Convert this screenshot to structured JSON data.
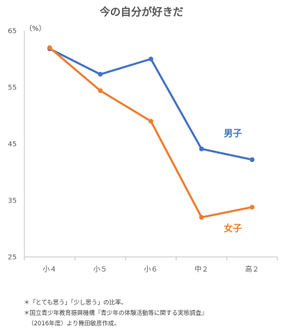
{
  "chart_data": {
    "type": "line",
    "title": "今の自分が好きだ",
    "ylabel": "（%）",
    "xlabel": "",
    "categories": [
      "小４",
      "小５",
      "小６",
      "中２",
      "高２"
    ],
    "ylim": [
      25,
      65
    ],
    "yticks": [
      "25",
      "35",
      "45",
      "55",
      "65"
    ],
    "grid": false,
    "series": [
      {
        "name": "男子",
        "values": [
          61.8,
          57.3,
          60.0,
          44.1,
          42.2
        ],
        "color": "#4472C4"
      },
      {
        "name": "女子",
        "values": [
          62.0,
          54.4,
          49.0,
          32.0,
          33.8
        ],
        "color": "#ED7D31"
      }
    ],
    "notes": [
      "＊「とても思う」「少し思う」の比率。",
      "＊国立青少年教育振興機構『青少年の体験活動等に関する実態調査』",
      "（2016年度）より舞田敏彦作成。"
    ]
  }
}
